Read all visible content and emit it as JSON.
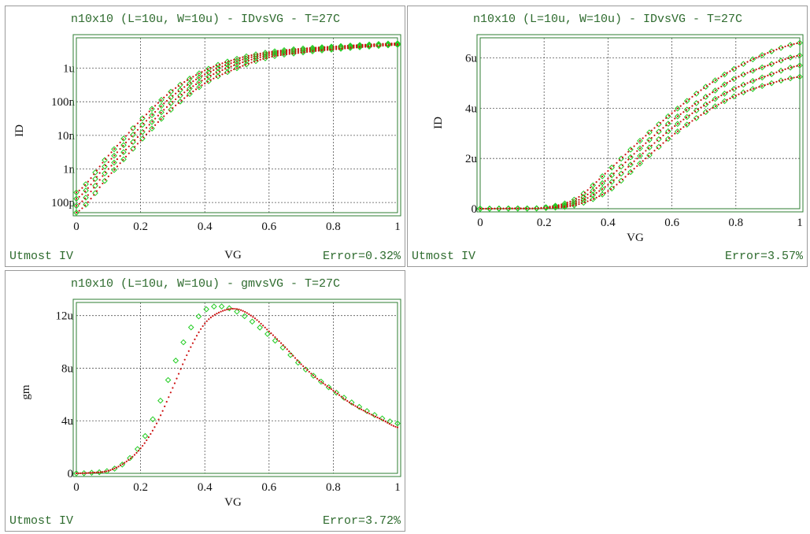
{
  "colors": {
    "measured": "#22cc22",
    "simulated": "#cc1010",
    "frame": "#2e7d32",
    "text": "#2e6b2e"
  },
  "panels": [
    {
      "title": "n10x10 (L=10u, W=10u) - IDvsVG - T=27C",
      "footer_left": "Utmost IV",
      "footer_right": "Error=0.32%",
      "xlabel": "VG",
      "ylabel": "ID"
    },
    {
      "title": "n10x10 (L=10u, W=10u) - IDvsVG - T=27C",
      "footer_left": "Utmost IV",
      "footer_right": "Error=3.57%",
      "xlabel": "VG",
      "ylabel": "ID"
    },
    {
      "title": "n10x10 (L=10u, W=10u) - gmvsVG - T=27C",
      "footer_left": "Utmost IV",
      "footer_right": "Error=3.72%",
      "xlabel": "VG",
      "ylabel": "gm"
    }
  ],
  "chart_data": [
    {
      "type": "scatter",
      "title": "n10x10 (L=10u, W=10u) - IDvsVG - T=27C",
      "xlabel": "VG",
      "ylabel": "ID",
      "yscale": "log",
      "xlim": [
        0,
        1
      ],
      "ylim": [
        5e-11,
        8e-06
      ],
      "x_ticks": [
        0,
        0.2,
        0.4,
        0.6,
        0.8,
        1
      ],
      "x_tick_labels": [
        "0",
        "0.2",
        "0.4",
        "0.6",
        "0.8",
        "1"
      ],
      "y_ticks": [
        1e-10,
        1e-09,
        1e-08,
        1e-07,
        1e-06
      ],
      "y_tick_labels": [
        "100p",
        "1n",
        "10n",
        "100n",
        "1u"
      ],
      "grid": true,
      "x": [
        0,
        0.1,
        0.2,
        0.3,
        0.4,
        0.5,
        0.6,
        0.7,
        0.8,
        0.9,
        1.0
      ],
      "series": [
        {
          "values": [
            2e-10,
            2.5e-09,
            2.8e-08,
            2.2e-07,
            8.5e-07,
            1.9e-06,
            3e-06,
            3.8e-06,
            4.4e-06,
            5e-06,
            5.5e-06
          ]
        },
        {
          "values": [
            1.3e-10,
            1.6e-09,
            1.8e-08,
            1.5e-07,
            6.5e-07,
            1.6e-06,
            2.7e-06,
            3.5e-06,
            4.2e-06,
            4.8e-06,
            5.3e-06
          ]
        },
        {
          "values": [
            8e-11,
            1e-09,
            1.1e-08,
            1e-07,
            4.8e-07,
            1.3e-06,
            2.4e-06,
            3.2e-06,
            3.9e-06,
            4.6e-06,
            5.1e-06
          ]
        },
        {
          "values": [
            5e-11,
            6e-10,
            7e-09,
            6.5e-08,
            3.5e-07,
            1e-06,
            2.1e-06,
            2.9e-06,
            3.6e-06,
            4.3e-06,
            4.9e-06
          ]
        }
      ]
    },
    {
      "type": "scatter",
      "title": "n10x10 (L=10u, W=10u) - IDvsVG - T=27C",
      "xlabel": "VG",
      "ylabel": "ID",
      "xlim": [
        0,
        1
      ],
      "ylim": [
        0,
        6.8e-06
      ],
      "x_ticks": [
        0,
        0.2,
        0.4,
        0.6,
        0.8,
        1
      ],
      "x_tick_labels": [
        "0",
        "0.2",
        "0.4",
        "0.6",
        "0.8",
        "1"
      ],
      "y_ticks": [
        0,
        2e-06,
        4e-06,
        6e-06
      ],
      "y_tick_labels": [
        "0",
        "2u",
        "4u",
        "6u"
      ],
      "grid": true,
      "x": [
        0,
        0.1,
        0.2,
        0.3,
        0.4,
        0.5,
        0.6,
        0.7,
        0.8,
        0.9,
        1.0
      ],
      "series": [
        {
          "values": [
            0,
            1e-08,
            5e-08,
            4e-07,
            1.5e-06,
            2.7e-06,
            3.8e-06,
            4.8e-06,
            5.6e-06,
            6.2e-06,
            6.6e-06
          ]
        },
        {
          "values": [
            0,
            1e-08,
            4e-08,
            3e-07,
            1.2e-06,
            2.4e-06,
            3.5e-06,
            4.4e-06,
            5.2e-06,
            5.7e-06,
            6.1e-06
          ]
        },
        {
          "values": [
            0,
            1e-08,
            3e-08,
            2.2e-07,
            9.5e-07,
            2.1e-06,
            3.2e-06,
            4.1e-06,
            4.8e-06,
            5.3e-06,
            5.7e-06
          ]
        },
        {
          "values": [
            0,
            1e-08,
            2e-08,
            1.5e-07,
            7e-07,
            1.8e-06,
            2.9e-06,
            3.8e-06,
            4.5e-06,
            4.95e-06,
            5.25e-06
          ]
        }
      ]
    },
    {
      "type": "scatter",
      "title": "n10x10 (L=10u, W=10u) - gmvsVG - T=27C",
      "xlabel": "VG",
      "ylabel": "gm",
      "xlim": [
        0,
        1
      ],
      "ylim": [
        0,
        1.3e-05
      ],
      "x_ticks": [
        0,
        0.2,
        0.4,
        0.6,
        0.8,
        1
      ],
      "x_tick_labels": [
        "0",
        "0.2",
        "0.4",
        "0.6",
        "0.8",
        "1"
      ],
      "y_ticks": [
        0,
        4e-06,
        8e-06,
        1.2e-05
      ],
      "y_tick_labels": [
        "0",
        "4u",
        "8u",
        "12u"
      ],
      "grid": true,
      "series": [
        {
          "kind": "measured",
          "x": [
            0,
            0.05,
            0.1,
            0.15,
            0.2,
            0.25,
            0.3,
            0.35,
            0.4,
            0.45,
            0.5,
            0.55,
            0.6,
            0.65,
            0.7,
            0.75,
            0.8,
            0.85,
            0.9,
            0.95,
            1.0
          ],
          "values": [
            0,
            5e-08,
            2e-07,
            8e-07,
            2.2e-06,
            4.8e-06,
            8e-06,
            1.08e-05,
            1.24e-05,
            1.27e-05,
            1.23e-05,
            1.15e-05,
            1.05e-05,
            9.4e-06,
            8.2e-06,
            7.2e-06,
            6.3e-06,
            5.5e-06,
            4.8e-06,
            4.2e-06,
            3.8e-06
          ]
        },
        {
          "kind": "simulated",
          "x": [
            0,
            0.05,
            0.1,
            0.15,
            0.2,
            0.25,
            0.3,
            0.35,
            0.4,
            0.45,
            0.5,
            0.55,
            0.6,
            0.65,
            0.7,
            0.75,
            0.8,
            0.85,
            0.9,
            0.95,
            1.0
          ],
          "values": [
            0,
            5e-08,
            2e-07,
            8e-07,
            1.9e-06,
            3.8e-06,
            6.5e-06,
            9.3e-06,
            1.14e-05,
            1.23e-05,
            1.25e-05,
            1.19e-05,
            1.08e-05,
            9.6e-06,
            8.3e-06,
            7.2e-06,
            6.3e-06,
            5.4e-06,
            4.7e-06,
            4.1e-06,
            3.5e-06
          ]
        }
      ]
    }
  ]
}
